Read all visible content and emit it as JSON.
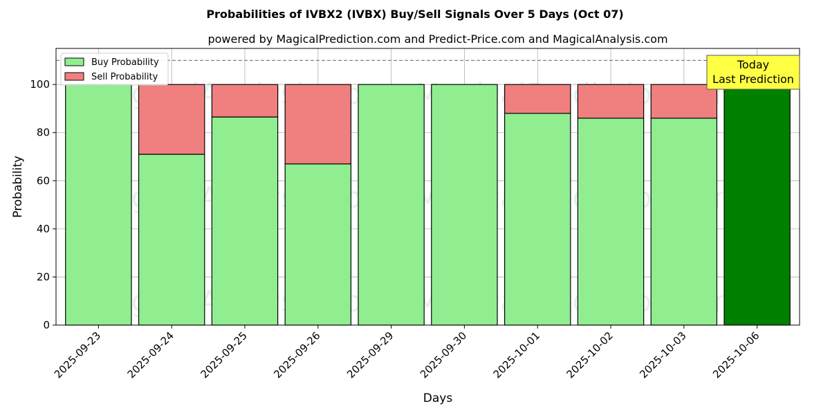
{
  "chart_data": {
    "type": "bar",
    "stacked": true,
    "title": "Probabilities of IVBX2 (IVBX) Buy/Sell Signals Over 5 Days (Oct 07)",
    "subtitle": "powered by MagicalPrediction.com and Predict-Price.com and MagicalAnalysis.com",
    "xlabel": "Days",
    "ylabel": "Probability",
    "ylim": [
      0,
      115
    ],
    "yticks": [
      0,
      20,
      40,
      60,
      80,
      100
    ],
    "grid": true,
    "legend_position": "top-left",
    "reference_line": 110,
    "categories": [
      "2025-09-23",
      "2025-09-24",
      "2025-09-25",
      "2025-09-26",
      "2025-09-29",
      "2025-09-30",
      "2025-10-01",
      "2025-10-02",
      "2025-10-03",
      "2025-10-06"
    ],
    "series": [
      {
        "name": "Buy Probability",
        "color": "#90ee90",
        "values": [
          100,
          71,
          86.5,
          67,
          100,
          100,
          88,
          86,
          86,
          100
        ]
      },
      {
        "name": "Sell Probability",
        "color": "#f08080",
        "values": [
          0,
          29,
          13.5,
          33,
          0,
          0,
          12,
          14,
          14,
          0
        ]
      }
    ],
    "highlight": {
      "category": "2025-10-06",
      "color": "#008000"
    },
    "annotation": {
      "line1": "Today",
      "line2": "Last Prediction",
      "background": "#ffff44"
    },
    "watermarks": [
      "MagicalAnalysis.com",
      "MagicalPrediction.com"
    ]
  }
}
